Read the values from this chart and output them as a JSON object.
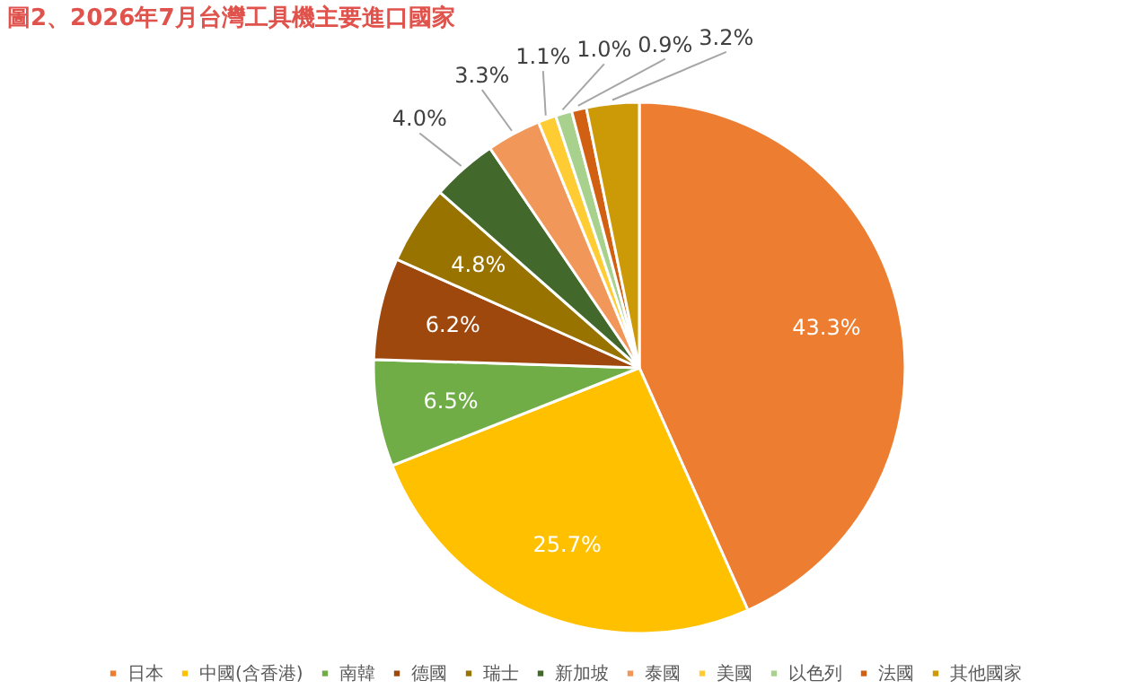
{
  "chart_data": {
    "type": "pie",
    "title": "圖2、2026年7月台灣工具機主要進口國家",
    "categories": [
      "日本",
      "中國(含香港)",
      "南韓",
      "德國",
      "瑞士",
      "新加坡",
      "泰國",
      "美國",
      "以色列",
      "法國",
      "其他國家"
    ],
    "values": [
      43.3,
      25.7,
      6.5,
      6.2,
      4.8,
      4.0,
      3.3,
      1.1,
      1.0,
      0.9,
      3.2
    ],
    "colors": [
      "#ed7d31",
      "#ffc000",
      "#70ad47",
      "#9e480e",
      "#997300",
      "#43682b",
      "#f1975a",
      "#ffcd33",
      "#a9d18e",
      "#d26012",
      "#cc9a06"
    ],
    "value_labels": [
      "43.3%",
      "25.7%",
      "6.5%",
      "6.2%",
      "4.8%",
      "4.0%",
      "3.3%",
      "1.1%",
      "1.0%",
      "0.9%",
      "3.2%"
    ],
    "legend": "bottom"
  }
}
